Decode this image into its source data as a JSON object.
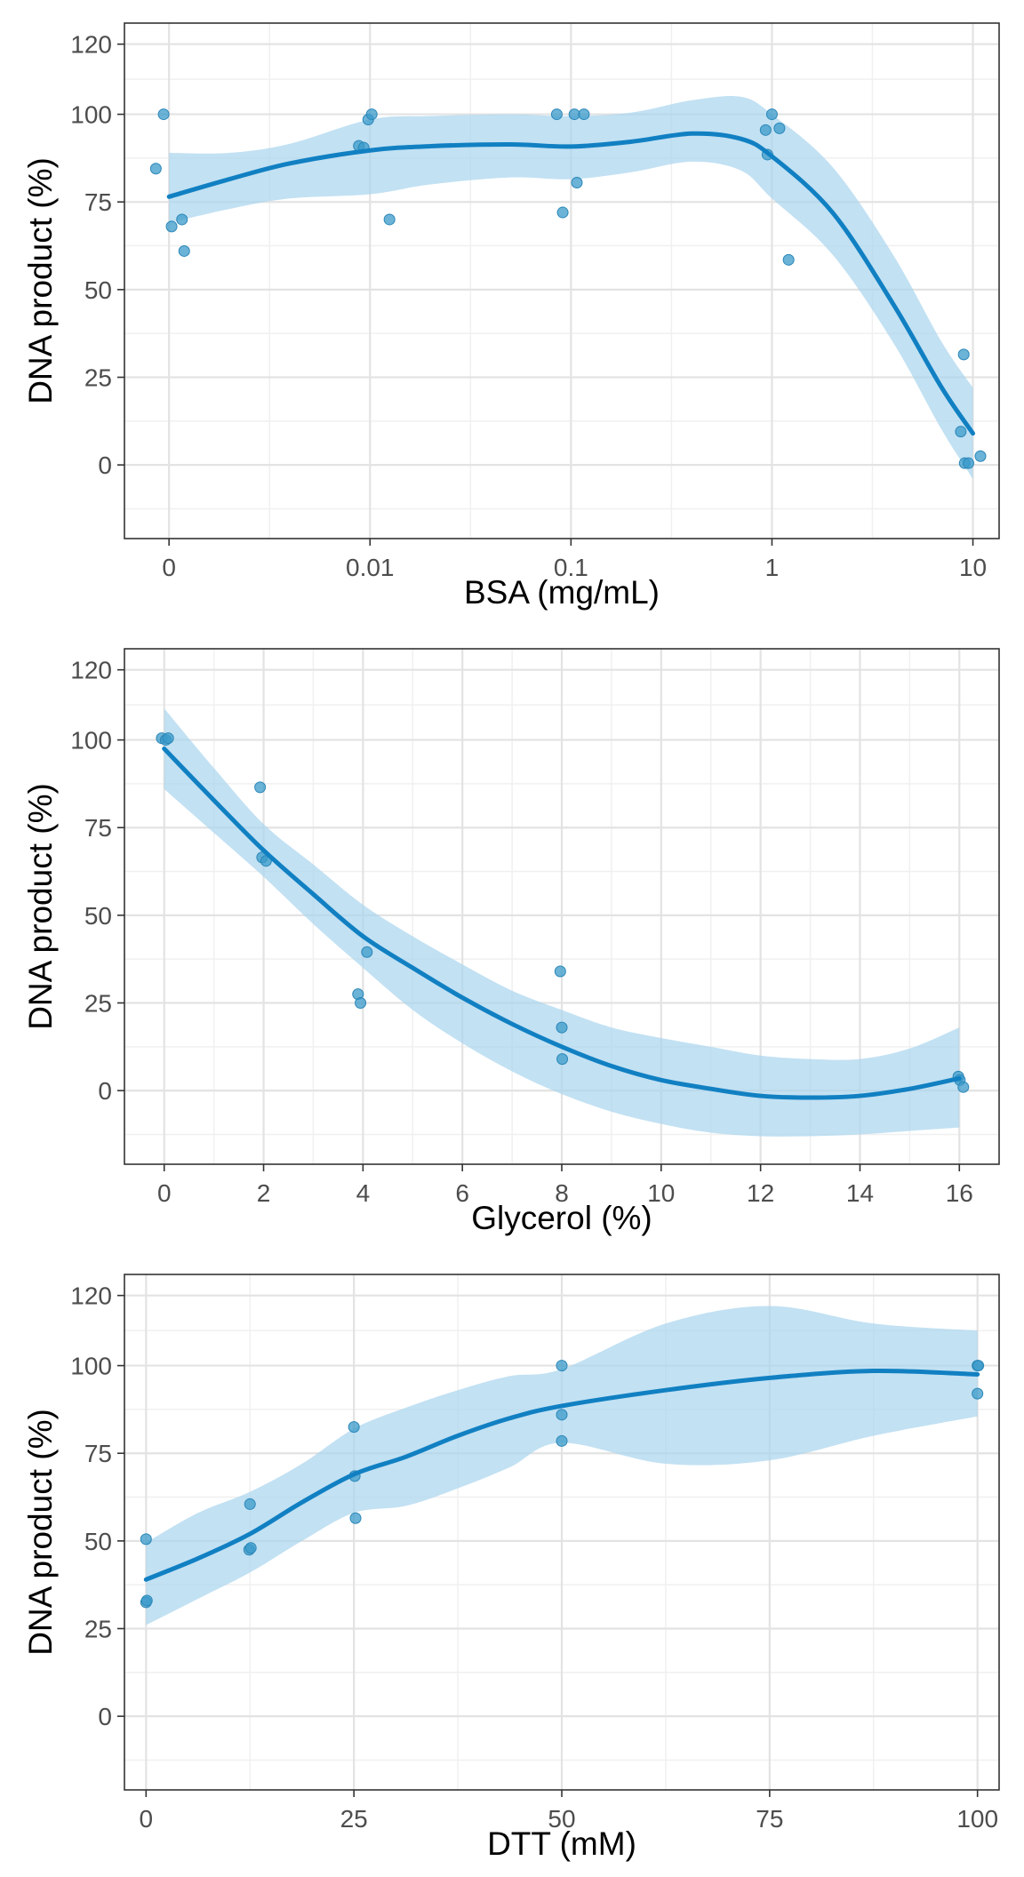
{
  "chart_data": [
    {
      "type": "scatter",
      "title": "",
      "xlabel": "BSA (mg/mL)",
      "ylabel": "DNA product (%)",
      "x_scale": "log10, first tick shows 0",
      "x_ticks": [
        0.001,
        0.01,
        0.1,
        1,
        10
      ],
      "x_tick_labels": [
        "0",
        "0.01",
        "0.1",
        "1",
        "10"
      ],
      "xlim": [
        0.0006,
        13.5
      ],
      "y_ticks": [
        0,
        25,
        50,
        75,
        100,
        120
      ],
      "y_tick_labels": [
        "0",
        "25",
        "50",
        "75",
        "100",
        "120"
      ],
      "ylim": [
        -21,
        126
      ],
      "grid": true,
      "point_color": "#3a99c9",
      "line_color": "#1180c2",
      "band_color": "#a8d4ee",
      "series": [
        {
          "points": [
            [
              0.00086,
              84.5
            ],
            [
              0.00094,
              100
            ],
            [
              0.00103,
              68
            ],
            [
              0.00116,
              70
            ],
            [
              0.00119,
              61
            ],
            [
              0.0088,
              91
            ],
            [
              0.0093,
              90.5
            ],
            [
              0.0098,
              98.5
            ],
            [
              0.0102,
              100
            ],
            [
              0.0125,
              70
            ],
            [
              0.085,
              100
            ],
            [
              0.091,
              72
            ],
            [
              0.104,
              100
            ],
            [
              0.107,
              80.5
            ],
            [
              0.116,
              100
            ],
            [
              0.93,
              95.5
            ],
            [
              0.95,
              88.5
            ],
            [
              1.0,
              100
            ],
            [
              1.09,
              96
            ],
            [
              1.21,
              58.5
            ],
            [
              8.7,
              9.5
            ],
            [
              9.0,
              31.5
            ],
            [
              9.1,
              0.5
            ],
            [
              9.5,
              0.5
            ],
            [
              10.9,
              2.5
            ]
          ]
        }
      ],
      "fit": {
        "x": [
          0.001,
          0.002,
          0.004,
          0.01,
          0.02,
          0.05,
          0.1,
          0.2,
          0.4,
          0.7,
          1,
          2,
          4,
          7,
          10
        ],
        "y": [
          76.5,
          81.5,
          86,
          89.7,
          90.9,
          91.4,
          90.8,
          92.2,
          94.5,
          93,
          88,
          72,
          46,
          22,
          9
        ],
        "lower": [
          69,
          73,
          76,
          77.2,
          80,
          82,
          81.5,
          83.5,
          86.5,
          84,
          76,
          60,
          35,
          10,
          -4
        ],
        "upper": [
          89,
          89,
          91.6,
          98.5,
          99.5,
          100,
          99.5,
          100.5,
          104,
          105,
          100,
          85,
          60,
          35,
          22
        ]
      }
    },
    {
      "type": "scatter",
      "title": "",
      "xlabel": "Glycerol (%)",
      "ylabel": "DNA product (%)",
      "x_scale": "linear",
      "x_ticks": [
        0,
        2,
        4,
        6,
        8,
        10,
        12,
        14,
        16
      ],
      "x_tick_labels": [
        "0",
        "2",
        "4",
        "6",
        "8",
        "10",
        "12",
        "14",
        "16"
      ],
      "xlim": [
        -0.8,
        16.8
      ],
      "y_ticks": [
        0,
        25,
        50,
        75,
        100,
        120
      ],
      "y_tick_labels": [
        "0",
        "25",
        "50",
        "75",
        "100",
        "120"
      ],
      "ylim": [
        -21,
        126
      ],
      "grid": true,
      "point_color": "#3a99c9",
      "line_color": "#1180c2",
      "band_color": "#a8d4ee",
      "series": [
        {
          "points": [
            [
              -0.05,
              100.5
            ],
            [
              0.03,
              100
            ],
            [
              0.08,
              100.5
            ],
            [
              1.93,
              86.5
            ],
            [
              1.97,
              66.5
            ],
            [
              2.05,
              65.5
            ],
            [
              3.9,
              27.5
            ],
            [
              3.95,
              25
            ],
            [
              4.08,
              39.5
            ],
            [
              7.97,
              34
            ],
            [
              8.0,
              18
            ],
            [
              8.01,
              9
            ],
            [
              15.98,
              4
            ],
            [
              16.01,
              3
            ],
            [
              16.08,
              1
            ]
          ]
        }
      ],
      "fit": {
        "x": [
          0,
          1,
          2,
          3,
          4,
          5,
          6,
          7,
          8,
          9,
          10,
          11,
          12,
          13,
          14,
          15,
          16
        ],
        "y": [
          97.5,
          82.8,
          68.5,
          56,
          44,
          35,
          26.5,
          19,
          12.5,
          7,
          3,
          0.5,
          -1.5,
          -2,
          -1.5,
          0.5,
          3.5
        ],
        "lower": [
          86,
          73.5,
          61,
          47.5,
          35,
          23,
          13.5,
          5.5,
          -1,
          -6,
          -9.5,
          -12,
          -13,
          -13,
          -12.5,
          -11.5,
          -10.5
        ],
        "upper": [
          109,
          92,
          76,
          64.5,
          53,
          44,
          36,
          28.5,
          23,
          18,
          15,
          12.5,
          10,
          9,
          9,
          12,
          18
        ]
      }
    },
    {
      "type": "scatter",
      "title": "",
      "xlabel": "DTT (mM)",
      "ylabel": "DNA product (%)",
      "x_scale": "linear",
      "x_ticks": [
        0,
        25,
        50,
        75,
        100
      ],
      "x_tick_labels": [
        "0",
        "25",
        "50",
        "75",
        "100"
      ],
      "xlim": [
        -2.6,
        102.6
      ],
      "y_ticks": [
        0,
        25,
        50,
        75,
        100,
        120
      ],
      "y_tick_labels": [
        "0",
        "25",
        "50",
        "75",
        "100",
        "120"
      ],
      "ylim": [
        -21,
        126
      ],
      "grid": true,
      "point_color": "#3a99c9",
      "line_color": "#1180c2",
      "band_color": "#a8d4ee",
      "series": [
        {
          "points": [
            [
              0,
              50.5
            ],
            [
              0,
              32.5
            ],
            [
              0.1,
              33
            ],
            [
              12.5,
              60.5
            ],
            [
              12.4,
              47.5
            ],
            [
              12.6,
              48
            ],
            [
              25,
              82.5
            ],
            [
              25.1,
              68.5
            ],
            [
              25.2,
              56.5
            ],
            [
              50,
              100
            ],
            [
              50,
              86
            ],
            [
              50,
              78.5
            ],
            [
              100,
              100
            ],
            [
              100.1,
              100
            ],
            [
              100,
              92
            ]
          ]
        }
      ],
      "fit": {
        "x": [
          0,
          6.25,
          12.5,
          18.75,
          25,
          31.25,
          37.5,
          43.75,
          50,
          62.5,
          75,
          87.5,
          100
        ],
        "y": [
          39,
          45,
          52,
          61,
          69,
          74,
          80,
          85,
          88.5,
          93,
          96.5,
          98.5,
          97.5
        ],
        "lower": [
          26,
          33.5,
          41,
          50,
          58,
          60,
          65,
          71,
          78,
          72,
          73,
          80,
          85.5
        ],
        "upper": [
          49.5,
          58,
          64,
          72,
          82,
          88,
          93,
          97,
          99,
          112,
          117,
          112,
          110
        ]
      }
    }
  ]
}
